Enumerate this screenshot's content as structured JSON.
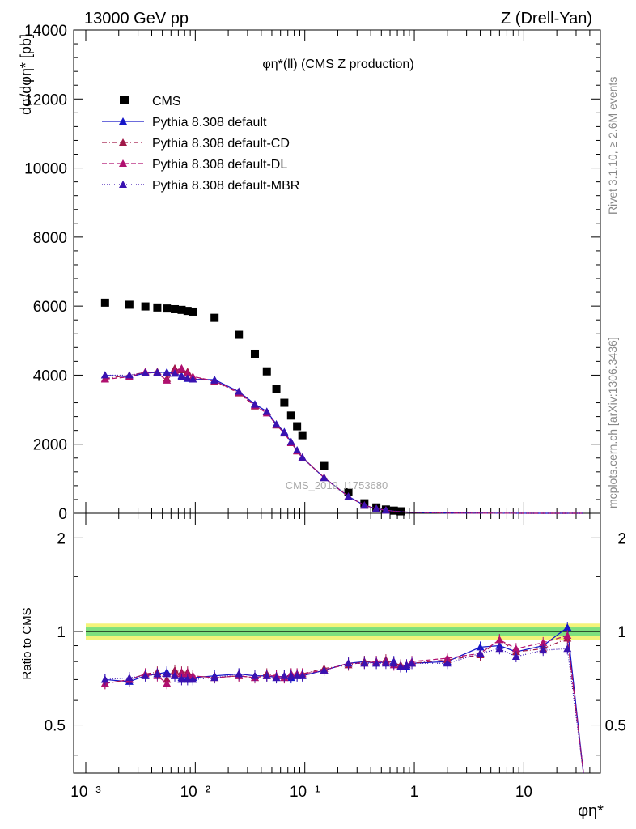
{
  "header": {
    "left": "13000 GeV pp",
    "right": "Z (Drell-Yan)"
  },
  "side_labels": {
    "rivet": "Rivet 3.1.10, ≥ 2.6M events",
    "source": "mcplots.cern.ch [arXiv:1306.3436]"
  },
  "watermark": "CMS_2019_I1753680",
  "main_plot": {
    "title": "φη*(ll) (CMS Z production)",
    "ylabel": "dσ/dφη* [pb]",
    "ylim": [
      0,
      14000
    ],
    "y_ticks": [
      "0",
      "2000",
      "4000",
      "6000",
      "8000",
      "10000",
      "12000",
      "14000"
    ]
  },
  "ratio_plot": {
    "ylabel": "Ratio to CMS",
    "y_ticks": [
      "0.5",
      "1",
      "2"
    ]
  },
  "x_axis": {
    "label": "φη*",
    "scale": "log",
    "xlim": [
      0.001,
      50
    ],
    "ticks": [
      "10⁻³",
      "10⁻²",
      "10⁻¹",
      "1",
      "10"
    ]
  },
  "legend": {
    "placement": "top-left",
    "entries": [
      {
        "label": "CMS",
        "style": "marker-square"
      },
      {
        "label": "Pythia 8.308 default",
        "style": "solid"
      },
      {
        "label": "Pythia 8.308 default-CD",
        "style": "dashdot"
      },
      {
        "label": "Pythia 8.308 default-DL",
        "style": "dashed"
      },
      {
        "label": "Pythia 8.308 default-MBR",
        "style": "dotted"
      }
    ]
  },
  "colors": {
    "data": "#000000",
    "default": "#1515c8",
    "cd": "#a01848",
    "dl": "#b01070",
    "mbr": "#3a12b0",
    "band_inner": "#7ee07e",
    "band_outer": "#f4f47a"
  },
  "chart_data": {
    "type": "scatter",
    "x": [
      0.0015,
      0.0025,
      0.0035,
      0.0045,
      0.0055,
      0.0065,
      0.0075,
      0.0085,
      0.0095,
      0.015,
      0.025,
      0.035,
      0.045,
      0.055,
      0.065,
      0.075,
      0.085,
      0.095,
      0.15,
      0.25,
      0.35,
      0.45,
      0.55,
      0.65,
      0.75,
      0.85,
      0.95,
      2.0,
      4.0,
      6.0,
      8.5,
      15.0,
      25.0,
      35.0
    ],
    "series": [
      {
        "name": "CMS",
        "values": [
          6100,
          6040,
          5990,
          5960,
          5930,
          5910,
          5890,
          5860,
          5840,
          5660,
          5170,
          4620,
          4110,
          3610,
          3200,
          2830,
          2520,
          2260,
          1370,
          610,
          290,
          170,
          110,
          78,
          58,
          44,
          35,
          10,
          3,
          1.6,
          1.0,
          0.5,
          0.2,
          0.05
        ]
      },
      {
        "name": "Pythia 8.308 default",
        "values": [
          4000,
          3950,
          4060,
          4080,
          4090,
          4050,
          3980,
          3900,
          3880,
          3870,
          3520,
          3160,
          2950,
          2580,
          2360,
          2060,
          1820,
          1610,
          1030,
          490,
          230,
          135,
          88,
          63,
          46,
          35,
          27,
          8,
          2.7,
          1.5,
          0.9,
          0.45,
          0.21,
          0.0
        ]
      },
      {
        "name": "Pythia 8.308 default-CD",
        "values": [
          3900,
          4000,
          4080,
          4100,
          3900,
          4200,
          4150,
          4100,
          3950,
          3820,
          3480,
          3100,
          2930,
          2550,
          2330,
          2050,
          1800,
          1600,
          1040,
          480,
          232,
          137,
          90,
          60,
          45,
          34,
          27,
          8,
          2.5,
          1.5,
          0.85,
          0.42,
          0.2,
          0.0
        ]
      },
      {
        "name": "Pythia 8.308 default-DL",
        "values": [
          3880,
          3950,
          4100,
          4060,
          3850,
          4120,
          4200,
          4050,
          3960,
          3830,
          3500,
          3120,
          2900,
          2560,
          2320,
          2040,
          1810,
          1620,
          1030,
          488,
          228,
          136,
          89,
          61,
          46,
          34,
          28,
          8.2,
          2.6,
          1.5,
          0.87,
          0.43,
          0.2,
          0.0
        ]
      },
      {
        "name": "Pythia 8.308 default-MBR",
        "values": [
          4000,
          4000,
          4070,
          4080,
          4070,
          4050,
          3950,
          3910,
          3880,
          3850,
          3530,
          3150,
          2940,
          2570,
          2340,
          2070,
          1830,
          1620,
          1030,
          485,
          230,
          134,
          87,
          61,
          46,
          35,
          27,
          8,
          2.7,
          1.45,
          0.85,
          0.42,
          0.19,
          0.0
        ]
      }
    ],
    "ratio": [
      {
        "name": "Pythia 8.308 default",
        "values": [
          0.7,
          0.69,
          0.72,
          0.73,
          0.74,
          0.72,
          0.71,
          0.71,
          0.71,
          0.72,
          0.73,
          0.72,
          0.72,
          0.71,
          0.72,
          0.71,
          0.72,
          0.72,
          0.75,
          0.79,
          0.8,
          0.79,
          0.8,
          0.8,
          0.77,
          0.77,
          0.79,
          0.8,
          0.89,
          0.9,
          0.86,
          0.9,
          1.03,
          0.28
        ]
      },
      {
        "name": "Pythia 8.308 default-CD",
        "values": [
          0.68,
          0.7,
          0.73,
          0.74,
          0.7,
          0.75,
          0.74,
          0.74,
          0.72,
          0.71,
          0.72,
          0.71,
          0.73,
          0.72,
          0.71,
          0.73,
          0.73,
          0.73,
          0.76,
          0.78,
          0.8,
          0.8,
          0.81,
          0.79,
          0.78,
          0.78,
          0.79,
          0.81,
          0.84,
          0.94,
          0.86,
          0.88,
          0.95,
          0.28
        ]
      },
      {
        "name": "Pythia 8.308 default-DL",
        "values": [
          0.68,
          0.7,
          0.73,
          0.72,
          0.68,
          0.73,
          0.73,
          0.73,
          0.72,
          0.71,
          0.72,
          0.71,
          0.72,
          0.72,
          0.71,
          0.73,
          0.73,
          0.73,
          0.75,
          0.79,
          0.79,
          0.8,
          0.8,
          0.78,
          0.77,
          0.78,
          0.8,
          0.82,
          0.85,
          0.94,
          0.88,
          0.92,
          0.97,
          0.28
        ]
      },
      {
        "name": "Pythia 8.308 default-MBR",
        "values": [
          0.7,
          0.71,
          0.72,
          0.73,
          0.73,
          0.72,
          0.7,
          0.7,
          0.7,
          0.71,
          0.73,
          0.72,
          0.72,
          0.71,
          0.72,
          0.72,
          0.72,
          0.72,
          0.75,
          0.79,
          0.79,
          0.79,
          0.79,
          0.79,
          0.77,
          0.78,
          0.79,
          0.79,
          0.85,
          0.88,
          0.83,
          0.87,
          0.88,
          0.28
        ]
      }
    ],
    "ratio_band": {
      "inner": 0.03,
      "outer": 0.06
    },
    "ratio_ylim": [
      0.35,
      2.4
    ],
    "grid": false
  }
}
